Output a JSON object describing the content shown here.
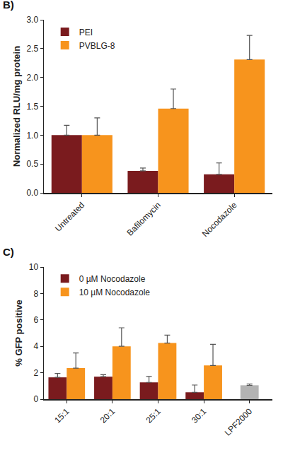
{
  "chart_data": [
    {
      "type": "bar",
      "title": "B)",
      "categories": [
        "Untreated",
        "Bafilomycin",
        "Nocodazole"
      ],
      "y_label": "Normalized RLU/mg protein",
      "ylim": [
        0,
        3
      ],
      "yticks": [
        {
          "value": 0,
          "label": "0.0"
        },
        0.5,
        {
          "value": 1,
          "label": "1.0"
        },
        1.5,
        {
          "value": 2,
          "label": "2.0"
        },
        2.5,
        {
          "value": 3,
          "label": "3.0"
        }
      ],
      "grid": false,
      "legend": "top-left",
      "series": [
        {
          "name": "PEI",
          "color": "#7a1b1e",
          "values": [
            1.0,
            0.38,
            0.32
          ],
          "errors": [
            0.17,
            0.05,
            0.2
          ]
        },
        {
          "name": "PVBLG-8",
          "color": "#f7941d",
          "values": [
            1.0,
            1.46,
            2.31
          ],
          "errors": [
            0.3,
            0.34,
            0.42
          ]
        }
      ]
    },
    {
      "type": "bar",
      "title": "C)",
      "categories": [
        "15:1",
        "20:1",
        "25:1",
        "30:1",
        "LPF2000"
      ],
      "y_label": "% GFP positive",
      "ylim": [
        0,
        10
      ],
      "yticks": [
        0,
        2,
        4,
        6,
        8,
        10
      ],
      "grid": false,
      "legend": "top-left",
      "series": [
        {
          "name": "0 µM Nocodazole",
          "color": "#7a1b1e",
          "values": [
            1.65,
            1.7,
            1.27,
            0.52,
            null
          ],
          "errors": [
            0.3,
            0.15,
            0.45,
            0.55,
            null
          ]
        },
        {
          "name": "10 µM Nocodazole",
          "color": "#f7941d",
          "values": [
            2.35,
            4.0,
            4.25,
            2.55,
            null
          ],
          "errors": [
            1.15,
            1.4,
            0.6,
            1.6,
            null
          ]
        },
        {
          "color": "#b3b3b3",
          "values": [
            null,
            null,
            null,
            null,
            1.05
          ],
          "errors": [
            null,
            null,
            null,
            null,
            0.1
          ]
        }
      ]
    }
  ]
}
